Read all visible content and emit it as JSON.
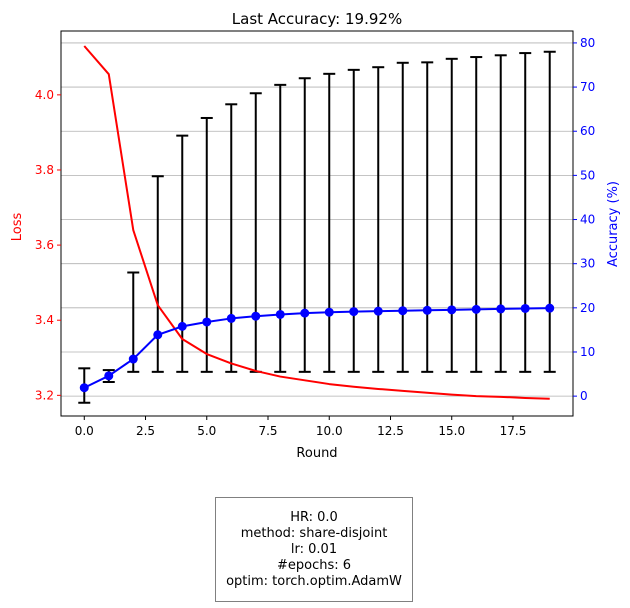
{
  "chart_data": {
    "type": "line",
    "title": "Last Accuracy: 19.92%",
    "xlabel": "Round",
    "ylabel_left": "Loss",
    "ylabel_right": "Accuracy (%)",
    "xlim": [
      -0.95,
      19.95
    ],
    "ylim_left": [
      3.145,
      4.17
    ],
    "ylim_right": [
      -4.5,
      82.7
    ],
    "x_ticks": [
      0.0,
      2.5,
      5.0,
      7.5,
      10.0,
      12.5,
      15.0,
      17.5
    ],
    "x_tick_labels": [
      "0.0",
      "2.5",
      "5.0",
      "7.5",
      "10.0",
      "12.5",
      "15.0",
      "17.5"
    ],
    "y_left_ticks": [
      3.2,
      3.4,
      3.6,
      3.8,
      4.0
    ],
    "y_left_tick_labels": [
      "3.2",
      "3.4",
      "3.6",
      "3.8",
      "4.0"
    ],
    "y_right_ticks": [
      0,
      10,
      20,
      30,
      40,
      50,
      60,
      70,
      80
    ],
    "y_right_tick_labels": [
      "0",
      "10",
      "20",
      "30",
      "40",
      "50",
      "60",
      "70",
      "80"
    ],
    "grid": "horizontal",
    "x": [
      0,
      1,
      2,
      3,
      4,
      5,
      6,
      7,
      8,
      9,
      10,
      11,
      12,
      13,
      14,
      15,
      16,
      17,
      18,
      19
    ],
    "series": [
      {
        "axis": "left",
        "color": "#ff0000",
        "values": [
          4.13,
          4.055,
          3.64,
          3.44,
          3.35,
          3.31,
          3.285,
          3.265,
          3.25,
          3.24,
          3.23,
          3.223,
          3.217,
          3.212,
          3.207,
          3.202,
          3.198,
          3.196,
          3.193,
          3.191
        ]
      },
      {
        "axis": "right",
        "color": "#0000ff",
        "marker": "circle",
        "values": [
          1.9,
          4.6,
          8.4,
          13.9,
          15.8,
          16.8,
          17.6,
          18.1,
          18.5,
          18.8,
          19.0,
          19.15,
          19.25,
          19.35,
          19.45,
          19.55,
          19.65,
          19.75,
          19.85,
          19.92
        ],
        "error_low": [
          -1.5,
          3.2,
          5.5,
          5.5,
          5.5,
          5.5,
          5.5,
          5.5,
          5.5,
          5.5,
          5.5,
          5.5,
          5.5,
          5.5,
          5.5,
          5.5,
          5.5,
          5.5,
          5.5,
          5.5
        ],
        "error_high": [
          6.3,
          5.9,
          28.0,
          49.8,
          59.0,
          63.0,
          66.1,
          68.6,
          70.5,
          72.0,
          73.0,
          73.9,
          74.5,
          75.5,
          75.6,
          76.4,
          76.8,
          77.2,
          77.7,
          78.0
        ],
        "error_color": "#000000"
      }
    ]
  },
  "info_box": {
    "lines": [
      "HR: 0.0",
      "method: share-disjoint",
      "lr: 0.01",
      "#epochs: 6",
      "optim: torch.optim.AdamW"
    ]
  }
}
